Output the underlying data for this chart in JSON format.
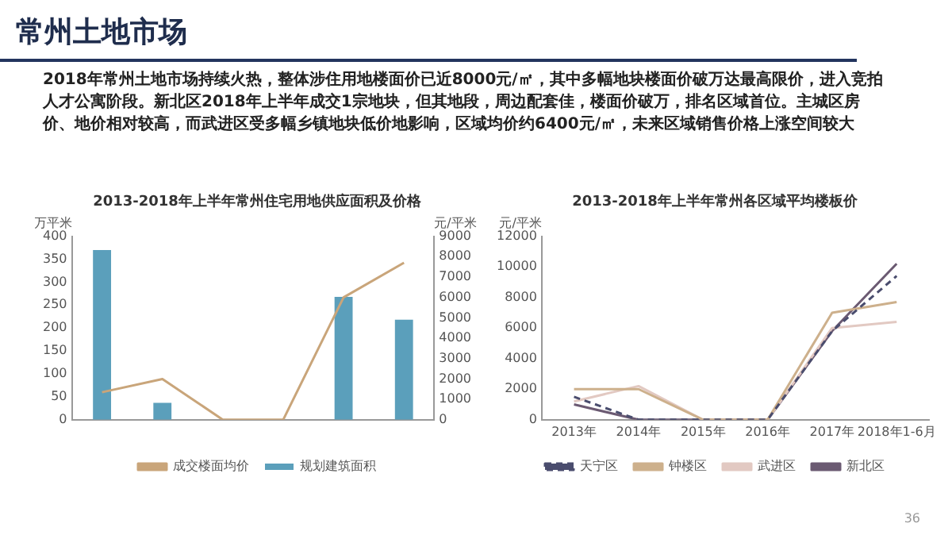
{
  "chart_data": [
    {
      "type": "other",
      "title": "常州土地市场",
      "annotations": [
        "2018年常州土地市场持续火热，整体涉住用地楼面价已近8000元/㎡，其中多幅地块楼面价破万达最高限价，进入竞拍人才公寓阶段。新北区2018年上半年成交1宗地块，但其地段，周边配套佳，楼面价破万，排名区域首位。主城区房价、地价相对较高，而武进区受多幅乡镇地块低价地影响，区域均价约6400元/㎡，未来区域销售价格上涨空间较大",
        "36"
      ]
    },
    {
      "type": "bar",
      "title": "2013-2018年上半年常州住宅用地供应面积及价格",
      "categories": [
        null,
        null,
        null,
        null,
        null,
        null
      ],
      "ylabel": "万平米",
      "y2label": "元/平米",
      "ylim": [
        0,
        400
      ],
      "yticks": [
        0,
        50,
        100,
        150,
        200,
        250,
        300,
        350,
        400
      ],
      "y2lim": [
        0,
        9000
      ],
      "y2ticks": [
        0,
        1000,
        2000,
        3000,
        4000,
        5000,
        6000,
        7000,
        8000,
        9000
      ],
      "grid": false,
      "legend": "bottom",
      "marker": "none",
      "series": [
        {
          "name": "规划建筑面积",
          "type": "bar",
          "color": "#5b9fbb",
          "values": [
            370,
            37,
            0,
            0,
            268,
            218
          ]
        },
        {
          "name": "成交楼面均价",
          "type": "line",
          "axis": "y2",
          "color": "#c9a57a",
          "values": [
            1350,
            2000,
            0,
            0,
            6000,
            7700
          ]
        }
      ]
    },
    {
      "type": "line",
      "title": "2013-2018年上半年常州各区域平均楼板价",
      "categories": [
        "2013年",
        "2014年",
        "2015年",
        "2016年",
        "2017年",
        "2018年1-6月"
      ],
      "ylabel": "元/平米",
      "ylim": [
        0,
        12000
      ],
      "yticks": [
        0,
        2000,
        4000,
        6000,
        8000,
        10000,
        12000
      ],
      "grid": false,
      "legend": "bottom",
      "marker": "none",
      "series": [
        {
          "name": "天宁区",
          "color": "#4a4d6e",
          "line_style": "dashed",
          "values": [
            1500,
            0,
            0,
            0,
            5800,
            9400
          ]
        },
        {
          "name": "钟楼区",
          "color": "#cdb08c",
          "line_style": "solid",
          "values": [
            2000,
            2000,
            0,
            0,
            7000,
            7700
          ]
        },
        {
          "name": "武进区",
          "color": "#e2c9c2",
          "line_style": "solid",
          "values": [
            1200,
            2200,
            0,
            0,
            6000,
            6400
          ]
        },
        {
          "name": "新北区",
          "color": "#6b5a72",
          "line_style": "solid",
          "values": [
            1000,
            0,
            0,
            0,
            5800,
            10200
          ]
        }
      ]
    }
  ]
}
